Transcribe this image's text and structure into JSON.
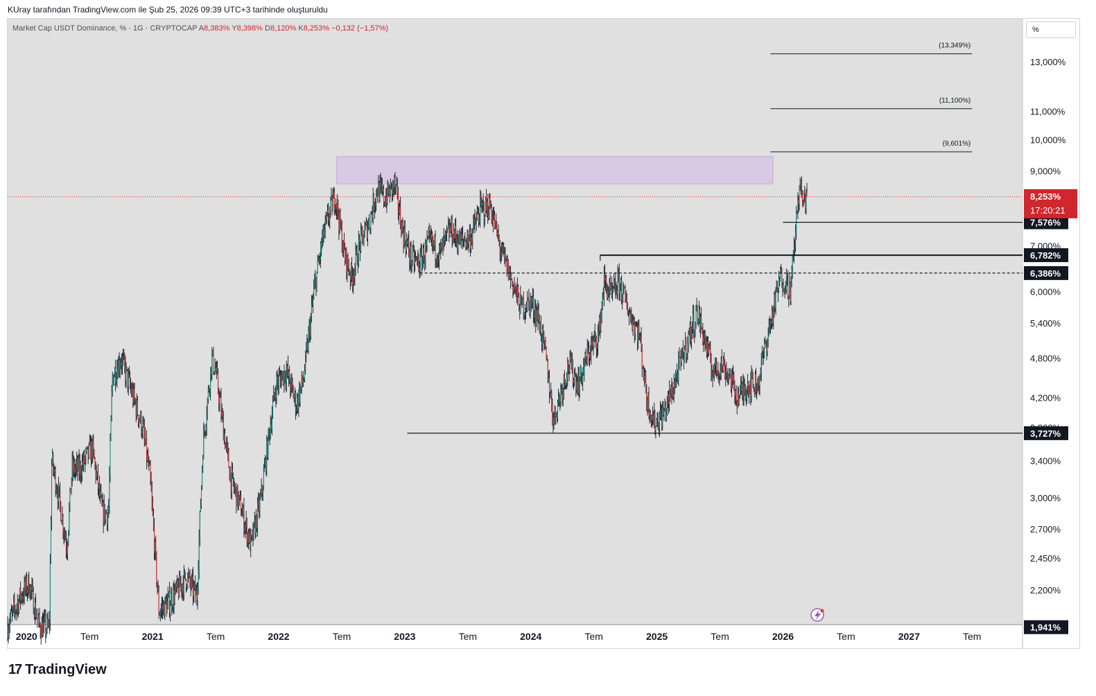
{
  "header": {
    "caption": "KUray tarafından TradingView.com ile Şub 25, 2026 09:39 UTC+3 tarihinde oluşturuldu"
  },
  "legend": {
    "symbol": "Market Cap USDT Dominance, % · 1G · CRYPTOCAP",
    "o_label": "A",
    "o_value": "8,383%",
    "h_label": "Y",
    "h_value": "8,398%",
    "l_label": "D",
    "l_value": "8,120%",
    "c_label": "K",
    "c_value": "8,253%",
    "change": "−0,132 (−1,57%)"
  },
  "scale_button": {
    "label": "%"
  },
  "brand": {
    "logo_text": "17",
    "name": "TradingView"
  },
  "colors": {
    "background": "#e0e0e0",
    "up": "#0b8f7b",
    "down": "#d0262e",
    "wick": "#131722",
    "zone": "#d9c8e4",
    "price_badge": "#d0262e",
    "level_badge": "#131722"
  },
  "chart_data": {
    "type": "candlestick",
    "series_name": "Market Cap USDT Dominance",
    "y_scale": "log",
    "y_ticks": [
      "13,000%",
      "11,000%",
      "10,000%",
      "9,000%",
      "7,000%",
      "6,000%",
      "5,400%",
      "4,800%",
      "4,200%",
      "3,800%",
      "3,400%",
      "3,000%",
      "2,700%",
      "2,450%",
      "2,200%"
    ],
    "y_tick_values": [
      13.0,
      11.0,
      10.0,
      9.0,
      7.0,
      6.0,
      5.4,
      4.8,
      4.2,
      3.8,
      3.4,
      3.0,
      2.7,
      2.45,
      2.2
    ],
    "x_ticks": [
      "2020",
      "Tem",
      "2021",
      "Tem",
      "2022",
      "Tem",
      "2023",
      "Tem",
      "2024",
      "Tem",
      "2025",
      "Tem",
      "2026",
      "Tem",
      "2027",
      "Tem"
    ],
    "x_tick_years": [
      2020.0,
      2020.5,
      2021.0,
      2021.5,
      2022.0,
      2022.5,
      2023.0,
      2023.5,
      2024.0,
      2024.5,
      2025.0,
      2025.5,
      2026.0,
      2026.5,
      2027.0,
      2027.5
    ],
    "x_range": [
      2019.85,
      2027.9
    ],
    "last_price": {
      "value": 8.253,
      "label": "8,253%",
      "countdown": "17:20:21"
    },
    "bottom_level": {
      "value": 1.941,
      "label": "1,941%"
    },
    "horizontal_levels": [
      {
        "value": 7.576,
        "label": "7,576%",
        "style": "solid",
        "from": 2026.0,
        "to": "axis"
      },
      {
        "value": 6.782,
        "label": "6,782%",
        "style": "solid",
        "from": 2024.55,
        "to": "axis"
      },
      {
        "value": 6.386,
        "label": "6,386%",
        "style": "dashed",
        "from": 2023.12,
        "to": "axis"
      },
      {
        "value": 3.727,
        "label": "3,727%",
        "style": "solid",
        "from": 2023.02,
        "to": "axis"
      }
    ],
    "target_levels": [
      {
        "value": 13.349,
        "label": "(13,349%)"
      },
      {
        "value": 11.1,
        "label": "(11,100%)"
      },
      {
        "value": 9.601,
        "label": "(9,601%)"
      }
    ],
    "target_span": [
      2025.9,
      2027.5
    ],
    "resistance_zone": {
      "from_year": 2022.46,
      "to_year": 2025.92,
      "low": 8.62,
      "high": 9.45
    },
    "path_points": [
      [
        2019.85,
        1.95
      ],
      [
        2019.95,
        2.15
      ],
      [
        2020.02,
        2.25
      ],
      [
        2020.1,
        1.95
      ],
      [
        2020.18,
        1.93
      ],
      [
        2020.2,
        3.4
      ],
      [
        2020.25,
        3.05
      ],
      [
        2020.32,
        2.55
      ],
      [
        2020.36,
        3.3
      ],
      [
        2020.42,
        3.3
      ],
      [
        2020.52,
        3.55
      ],
      [
        2020.6,
        2.85
      ],
      [
        2020.65,
        2.85
      ],
      [
        2020.68,
        4.5
      ],
      [
        2020.75,
        4.8
      ],
      [
        2020.83,
        4.3
      ],
      [
        2020.92,
        3.8
      ],
      [
        2020.98,
        3.2
      ],
      [
        2021.05,
        2.05
      ],
      [
        2021.12,
        2.1
      ],
      [
        2021.2,
        2.2
      ],
      [
        2021.27,
        2.3
      ],
      [
        2021.35,
        2.15
      ],
      [
        2021.4,
        3.6
      ],
      [
        2021.47,
        4.8
      ],
      [
        2021.5,
        4.6
      ],
      [
        2021.56,
        3.8
      ],
      [
        2021.62,
        3.2
      ],
      [
        2021.7,
        2.9
      ],
      [
        2021.78,
        2.55
      ],
      [
        2021.86,
        3.0
      ],
      [
        2021.93,
        3.8
      ],
      [
        2021.98,
        4.4
      ],
      [
        2022.06,
        4.6
      ],
      [
        2022.14,
        4.1
      ],
      [
        2022.2,
        4.5
      ],
      [
        2022.28,
        6.0
      ],
      [
        2022.35,
        7.2
      ],
      [
        2022.4,
        7.8
      ],
      [
        2022.45,
        8.3
      ],
      [
        2022.52,
        6.8
      ],
      [
        2022.58,
        6.3
      ],
      [
        2022.64,
        7.0
      ],
      [
        2022.72,
        7.6
      ],
      [
        2022.78,
        8.5
      ],
      [
        2022.84,
        8.2
      ],
      [
        2022.92,
        8.6
      ],
      [
        2022.98,
        7.4
      ],
      [
        2023.05,
        6.7
      ],
      [
        2023.12,
        6.6
      ],
      [
        2023.2,
        7.1
      ],
      [
        2023.28,
        6.8
      ],
      [
        2023.36,
        7.4
      ],
      [
        2023.44,
        7.1
      ],
      [
        2023.52,
        7.2
      ],
      [
        2023.6,
        7.9
      ],
      [
        2023.68,
        8.0
      ],
      [
        2023.76,
        6.9
      ],
      [
        2023.84,
        6.3
      ],
      [
        2023.92,
        5.7
      ],
      [
        2024.0,
        5.8
      ],
      [
        2024.06,
        5.5
      ],
      [
        2024.12,
        4.8
      ],
      [
        2024.18,
        3.9
      ],
      [
        2024.24,
        4.3
      ],
      [
        2024.3,
        4.7
      ],
      [
        2024.38,
        4.4
      ],
      [
        2024.46,
        4.9
      ],
      [
        2024.54,
        5.2
      ],
      [
        2024.58,
        6.2
      ],
      [
        2024.64,
        5.9
      ],
      [
        2024.7,
        6.2
      ],
      [
        2024.78,
        5.6
      ],
      [
        2024.86,
        5.2
      ],
      [
        2024.92,
        4.2
      ],
      [
        2024.98,
        3.85
      ],
      [
        2025.06,
        4.0
      ],
      [
        2025.12,
        4.3
      ],
      [
        2025.2,
        4.8
      ],
      [
        2025.26,
        5.2
      ],
      [
        2025.32,
        5.6
      ],
      [
        2025.38,
        5.1
      ],
      [
        2025.44,
        4.6
      ],
      [
        2025.52,
        4.7
      ],
      [
        2025.58,
        4.5
      ],
      [
        2025.64,
        4.2
      ],
      [
        2025.72,
        4.4
      ],
      [
        2025.8,
        4.4
      ],
      [
        2025.86,
        5.0
      ],
      [
        2025.92,
        5.6
      ],
      [
        2025.98,
        6.3
      ],
      [
        2026.03,
        6.2
      ],
      [
        2026.06,
        6.0
      ],
      [
        2026.1,
        7.4
      ],
      [
        2026.13,
        8.6
      ],
      [
        2026.16,
        8.05
      ],
      [
        2026.19,
        8.4
      ]
    ]
  }
}
